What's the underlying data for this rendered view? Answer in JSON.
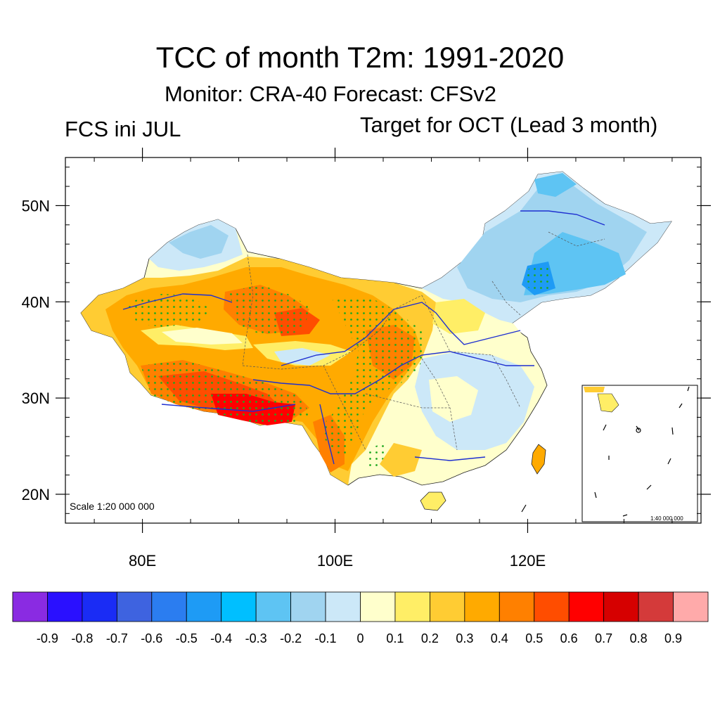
{
  "header": {
    "title": "TCC of month T2m: 1991-2020",
    "subtitle": "Monitor: CRA-40   Forecast: CFSv2",
    "left_label": "FCS ini JUL",
    "right_label": "Target for OCT (Lead 3 month)"
  },
  "map": {
    "lon_range": [
      72,
      138
    ],
    "lat_range": [
      17,
      55
    ],
    "lat_ticks": [
      {
        "value": 50,
        "label": "50N"
      },
      {
        "value": 40,
        "label": "40N"
      },
      {
        "value": 30,
        "label": "30N"
      },
      {
        "value": 20,
        "label": "20N"
      }
    ],
    "lon_ticks": [
      {
        "value": 80,
        "label": "80E"
      },
      {
        "value": 100,
        "label": "100E"
      },
      {
        "value": 120,
        "label": "120E"
      }
    ],
    "scale_label": "Scale 1:20 000 000",
    "inset_scale_label": "1:40 000 000"
  },
  "colorbar": {
    "colors": [
      "#8a2be2",
      "#2a10ff",
      "#1a2cf5",
      "#3e63e0",
      "#2b7df0",
      "#1e9bf5",
      "#00bfff",
      "#5ec4f3",
      "#a0d4f0",
      "#cce8f8",
      "#ffffcc",
      "#ffee66",
      "#ffcc33",
      "#ffaa00",
      "#ff8000",
      "#ff4d00",
      "#ff0000",
      "#d60000",
      "#d43a3a",
      "#ffaaaa"
    ],
    "labels": [
      "-0.9",
      "-0.8",
      "-0.7",
      "-0.6",
      "-0.5",
      "-0.4",
      "-0.3",
      "-0.2",
      "-0.1",
      "0",
      "0.1",
      "0.2",
      "0.3",
      "0.4",
      "0.5",
      "0.6",
      "0.7",
      "0.8",
      "0.9"
    ]
  }
}
